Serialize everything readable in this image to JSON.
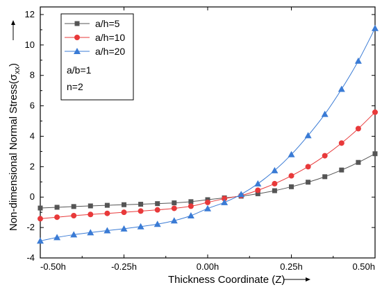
{
  "chart_data": {
    "type": "line",
    "xlabel": "Thickness Coordinate (Z)",
    "ylabel_main": "Non-dimensional Normal Stress(σ",
    "ylabel_sub": "xx",
    "ylabel_close": ")",
    "x_ticks": [
      {
        "value": -0.5,
        "label": "-0.50h"
      },
      {
        "value": -0.25,
        "label": "-0.25h"
      },
      {
        "value": 0.0,
        "label": "0.00h"
      },
      {
        "value": 0.25,
        "label": "0.25h"
      },
      {
        "value": 0.5,
        "label": "0.50h"
      }
    ],
    "y_ticks": [
      -4,
      -2,
      0,
      2,
      4,
      6,
      8,
      10,
      12
    ],
    "xlim": [
      -0.5,
      0.5
    ],
    "ylim": [
      -4,
      12.5
    ],
    "grid": false,
    "legend_position": "top-left",
    "annotations": [
      "a/b=1",
      "n=2"
    ],
    "x": [
      -0.5,
      -0.45,
      -0.4,
      -0.35,
      -0.3,
      -0.25,
      -0.2,
      -0.15,
      -0.1,
      -0.05,
      0.0,
      0.05,
      0.1,
      0.15,
      0.2,
      0.25,
      0.3,
      0.35,
      0.4,
      0.45,
      0.5
    ],
    "series": [
      {
        "name": "a/h=5",
        "color": "#555555",
        "marker": "square",
        "values": [
          -0.72,
          -0.67,
          -0.62,
          -0.58,
          -0.54,
          -0.5,
          -0.47,
          -0.43,
          -0.38,
          -0.3,
          -0.17,
          -0.05,
          0.06,
          0.22,
          0.42,
          0.68,
          0.98,
          1.34,
          1.78,
          2.28,
          2.85
        ]
      },
      {
        "name": "a/h=10",
        "color": "#e8393a",
        "marker": "circle",
        "values": [
          -1.42,
          -1.32,
          -1.22,
          -1.14,
          -1.07,
          -1.0,
          -0.92,
          -0.84,
          -0.74,
          -0.6,
          -0.35,
          -0.1,
          0.1,
          0.45,
          0.88,
          1.4,
          2.0,
          2.72,
          3.55,
          4.5,
          5.58
        ]
      },
      {
        "name": "a/h=20",
        "color": "#3a7bd5",
        "marker": "triangle",
        "values": [
          -2.88,
          -2.65,
          -2.47,
          -2.33,
          -2.2,
          -2.08,
          -1.94,
          -1.78,
          -1.55,
          -1.22,
          -0.75,
          -0.35,
          0.18,
          0.88,
          1.75,
          2.8,
          4.05,
          5.45,
          7.1,
          8.95,
          11.1
        ]
      }
    ]
  }
}
